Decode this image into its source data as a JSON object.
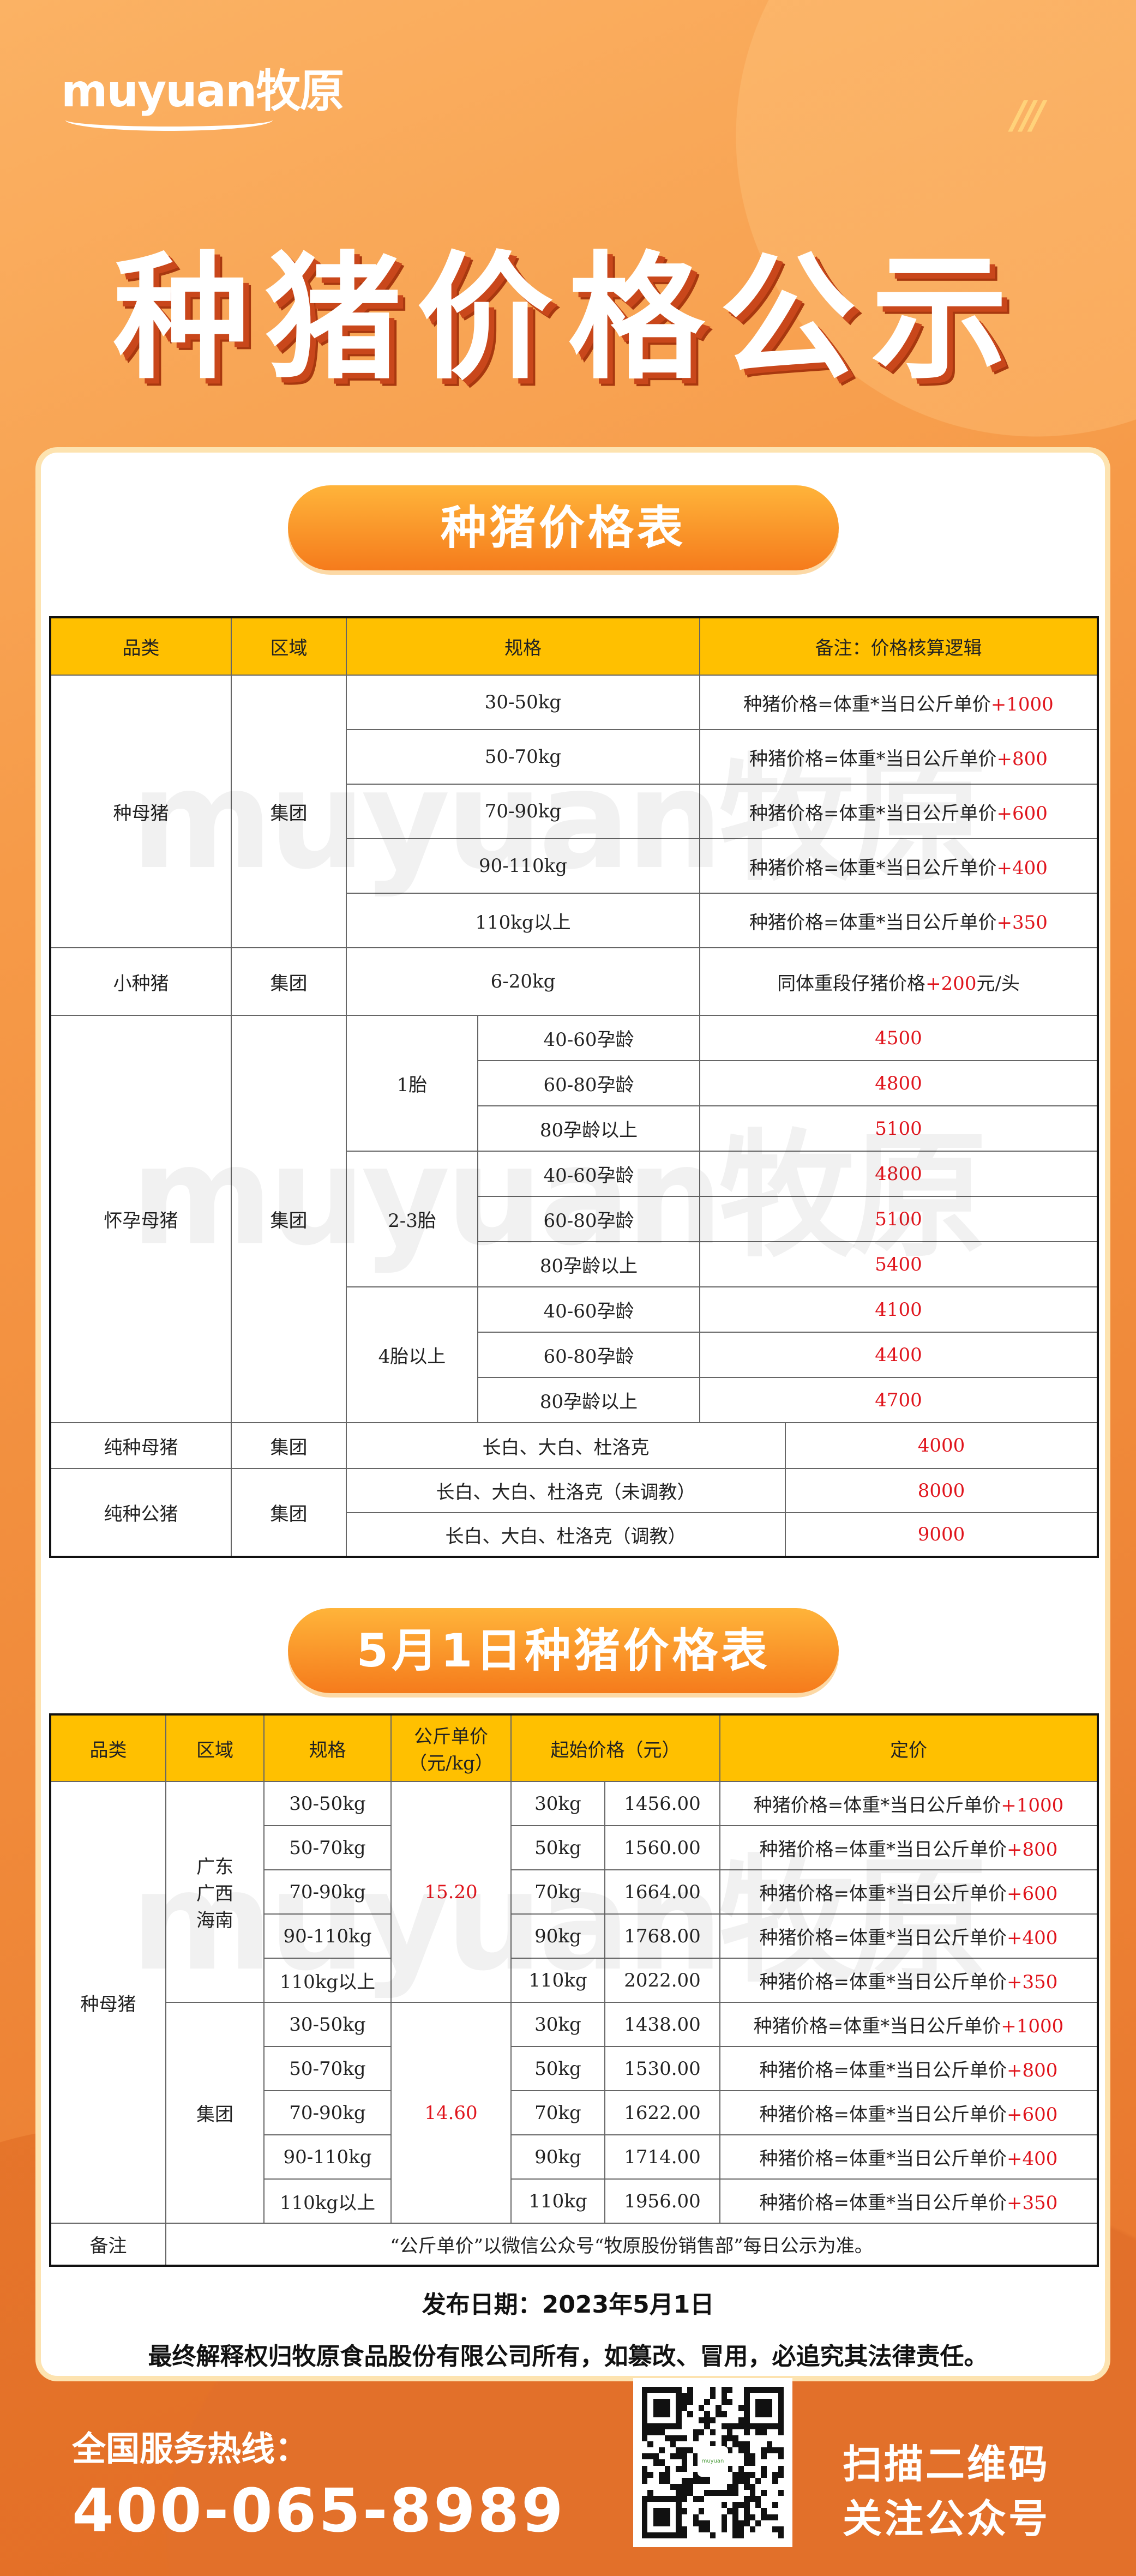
{
  "brand": {
    "logo": "muyuan牧原",
    "watermark": "muyuan牧原"
  },
  "title": "种猪价格公示",
  "colors": {
    "header_bg": "#ffc000",
    "accent_red": "#e0141c",
    "orange": "#f08a3a"
  },
  "table1": {
    "pill": "种猪价格表",
    "headers": [
      "品类",
      "区域",
      "规格",
      "备注：价格核算逻辑"
    ],
    "sow": {
      "category": "种母猪",
      "region": "集团",
      "formula": "种猪价格=体重*当日公斤单价",
      "rows": [
        {
          "spec": "30-50kg",
          "add": "+1000"
        },
        {
          "spec": "50-70kg",
          "add": "+800"
        },
        {
          "spec": "70-90kg",
          "add": "+600"
        },
        {
          "spec": "90-110kg",
          "add": "+400"
        },
        {
          "spec": "110kg以上",
          "add": "+350"
        }
      ]
    },
    "small": {
      "category": "小种猪",
      "region": "集团",
      "spec": "6-20kg",
      "note": "同体重段仔猪价格",
      "add": "+200",
      "suffix": "元/头"
    },
    "pregnant": {
      "category": "怀孕母猪",
      "region": "集团",
      "groups": [
        {
          "parity": "1胎",
          "rows": [
            {
              "age": "40-60孕龄",
              "price": "4500"
            },
            {
              "age": "60-80孕龄",
              "price": "4800"
            },
            {
              "age": "80孕龄以上",
              "price": "5100"
            }
          ]
        },
        {
          "parity": "2-3胎",
          "rows": [
            {
              "age": "40-60孕龄",
              "price": "4800"
            },
            {
              "age": "60-80孕龄",
              "price": "5100"
            },
            {
              "age": "80孕龄以上",
              "price": "5400"
            }
          ]
        },
        {
          "parity": "4胎以上",
          "rows": [
            {
              "age": "40-60孕龄",
              "price": "4100"
            },
            {
              "age": "60-80孕龄",
              "price": "4400"
            },
            {
              "age": "80孕龄以上",
              "price": "4700"
            }
          ]
        }
      ]
    },
    "pure_sow": {
      "category": "纯种母猪",
      "region": "集团",
      "spec": "长白、大白、杜洛克",
      "price": "4000"
    },
    "pure_boar": {
      "category": "纯种公猪",
      "region": "集团",
      "rows": [
        {
          "spec": "长白、大白、杜洛克（未调教）",
          "price": "8000"
        },
        {
          "spec": "长白、大白、杜洛克（调教）",
          "price": "9000"
        }
      ]
    }
  },
  "table2": {
    "pill": "5月1日种猪价格表",
    "headers": [
      "品类",
      "区域",
      "规格",
      "公斤单价（元/kg）",
      "起始价格（元）",
      "定价"
    ],
    "category": "种母猪",
    "formula": "种猪价格=体重*当日公斤单价",
    "groups": [
      {
        "region": "广东\n广西\n海南",
        "unit_price": "15.20",
        "rows": [
          {
            "spec": "30-50kg",
            "weight": "30kg",
            "start": "1456.00",
            "add": "+1000"
          },
          {
            "spec": "50-70kg",
            "weight": "50kg",
            "start": "1560.00",
            "add": "+800"
          },
          {
            "spec": "70-90kg",
            "weight": "70kg",
            "start": "1664.00",
            "add": "+600"
          },
          {
            "spec": "90-110kg",
            "weight": "90kg",
            "start": "1768.00",
            "add": "+400"
          },
          {
            "spec": "110kg以上",
            "weight": "110kg",
            "start": "2022.00",
            "add": "+350"
          }
        ]
      },
      {
        "region": "集团",
        "unit_price": "14.60",
        "rows": [
          {
            "spec": "30-50kg",
            "weight": "30kg",
            "start": "1438.00",
            "add": "+1000"
          },
          {
            "spec": "50-70kg",
            "weight": "50kg",
            "start": "1530.00",
            "add": "+800"
          },
          {
            "spec": "70-90kg",
            "weight": "70kg",
            "start": "1622.00",
            "add": "+600"
          },
          {
            "spec": "90-110kg",
            "weight": "90kg",
            "start": "1714.00",
            "add": "+400"
          },
          {
            "spec": "110kg以上",
            "weight": "110kg",
            "start": "1956.00",
            "add": "+350"
          }
        ]
      }
    ],
    "note_label": "备注",
    "note": "“公斤单价”以微信公众号“牧原股份销售部”每日公示为准。"
  },
  "release_date": "发布日期：2023年5月1日",
  "disclaimer": "最终解释权归牧原食品股份有限公司所有，如篡改、冒用，必追究其法律责任。",
  "footer": {
    "hotline_label": "全国服务热线：",
    "hotline": "400-065-8989",
    "scan_line1": "扫描二维码",
    "scan_line2": "关注公众号"
  }
}
